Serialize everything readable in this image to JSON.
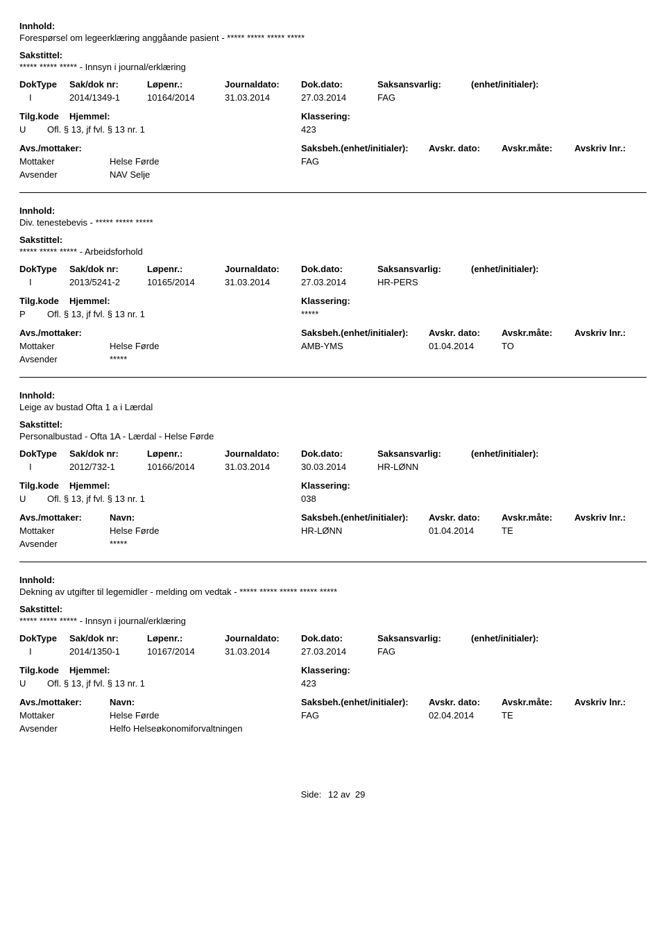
{
  "labels": {
    "innhold": "Innhold:",
    "sakstittel": "Sakstittel:",
    "doktype": "DokType",
    "sakdoknr": "Sak/dok nr:",
    "lopenr": "Løpenr.:",
    "journaldato": "Journaldato:",
    "dokdato": "Dok.dato:",
    "saksansvarlig": "Saksansvarlig:",
    "enhet_initialer": "(enhet/initialer):",
    "tilgkode": "Tilg.kode",
    "hjemmel": "Hjemmel:",
    "klassering": "Klassering:",
    "avsmottaker": "Avs./mottaker:",
    "navn": "Navn:",
    "saksbeh_enhet": "Saksbeh.(enhet/initialer):",
    "avskr_dato": "Avskr. dato:",
    "avskr_maate": "Avskr.måte:",
    "avskriv_lnr": "Avskriv lnr.:",
    "mottaker": "Mottaker",
    "avsender": "Avsender",
    "side": "Side:"
  },
  "footer": {
    "page": "12 av  29",
    "page_num": "12",
    "page_total": "29"
  },
  "entries": [
    {
      "innhold": "Forespørsel om legeerklæring anggåande pasient - ***** ***** ***** *****",
      "sakstittel": "***** ***** ***** - Innsyn i journal/erklæring",
      "doktype": "I",
      "sakdoknr": "2014/1349-1",
      "lopenr": "10164/2014",
      "journaldato": "31.03.2014",
      "dokdato": "27.03.2014",
      "saksansvarlig": "FAG",
      "tilgkode": "U",
      "hjemmel": "Ofl. § 13, jf fvl. § 13 nr. 1",
      "klassering": "423",
      "show_am_header": false,
      "mottaker_navn": "Helse Førde",
      "mottaker_saksbeh": "FAG",
      "mottaker_avskr_dato": "",
      "mottaker_avskr_maate": "",
      "avsender_navn": "NAV Selje"
    },
    {
      "innhold": "Div. tenestebevis - ***** ***** *****",
      "sakstittel": "***** ***** ***** - Arbeidsforhold",
      "doktype": "I",
      "sakdoknr": "2013/5241-2",
      "lopenr": "10165/2014",
      "journaldato": "31.03.2014",
      "dokdato": "27.03.2014",
      "saksansvarlig": "HR-PERS",
      "tilgkode": "P",
      "hjemmel": "Ofl. § 13, jf fvl. § 13 nr. 1",
      "klassering": "*****",
      "show_am_header": false,
      "mottaker_navn": "Helse Førde",
      "mottaker_saksbeh": "AMB-YMS",
      "mottaker_avskr_dato": "01.04.2014",
      "mottaker_avskr_maate": "TO",
      "avsender_navn": "*****"
    },
    {
      "innhold": "Leige av bustad Ofta 1 a i Lærdal",
      "sakstittel": "Personalbustad - Ofta 1A - Lærdal - Helse Førde",
      "doktype": "I",
      "sakdoknr": "2012/732-1",
      "lopenr": "10166/2014",
      "journaldato": "31.03.2014",
      "dokdato": "30.03.2014",
      "saksansvarlig": "HR-LØNN",
      "tilgkode": "U",
      "hjemmel": "Ofl. § 13, jf fvl. § 13 nr. 1",
      "klassering": "038",
      "show_am_header": true,
      "mottaker_navn": "Helse Førde",
      "mottaker_saksbeh": "HR-LØNN",
      "mottaker_avskr_dato": "01.04.2014",
      "mottaker_avskr_maate": "TE",
      "avsender_navn": "*****"
    },
    {
      "innhold": "Dekning av utgifter til legemidler - melding om vedtak - ***** ***** ***** ***** *****",
      "sakstittel": "***** ***** ***** - Innsyn i journal/erklæring",
      "doktype": "I",
      "sakdoknr": "2014/1350-1",
      "lopenr": "10167/2014",
      "journaldato": "31.03.2014",
      "dokdato": "27.03.2014",
      "saksansvarlig": "FAG",
      "tilgkode": "U",
      "hjemmel": "Ofl. § 13, jf fvl. § 13 nr. 1",
      "klassering": "423",
      "show_am_header": true,
      "mottaker_navn": "Helse Førde",
      "mottaker_saksbeh": "FAG",
      "mottaker_avskr_dato": "02.04.2014",
      "mottaker_avskr_maate": "TE",
      "avsender_navn": "Helfo Helseøkonomiforvaltningen"
    }
  ]
}
